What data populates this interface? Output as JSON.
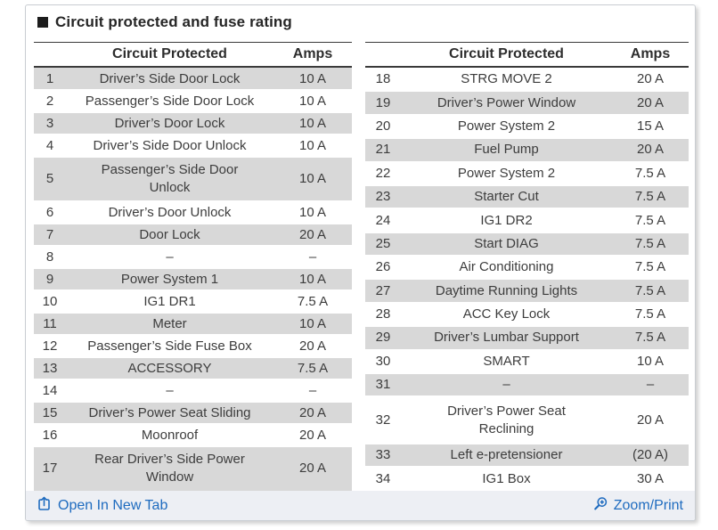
{
  "title": "Circuit protected and fuse rating",
  "tables": [
    {
      "headers": {
        "circuit": "Circuit Protected",
        "amps": "Amps"
      },
      "rows": [
        {
          "num": "1",
          "circuit": "Driver’s Side Door Lock",
          "amps": "10 A",
          "shaded": true
        },
        {
          "num": "2",
          "circuit": "Passenger’s Side Door Lock",
          "amps": "10 A",
          "shaded": false
        },
        {
          "num": "3",
          "circuit": "Driver’s Door Lock",
          "amps": "10 A",
          "shaded": true
        },
        {
          "num": "4",
          "circuit": "Driver’s Side Door Unlock",
          "amps": "10 A",
          "shaded": false
        },
        {
          "num": "5",
          "circuit": "Passenger’s Side Door\nUnlock",
          "amps": "10 A",
          "shaded": true
        },
        {
          "num": "6",
          "circuit": "Driver’s Door Unlock",
          "amps": "10 A",
          "shaded": false
        },
        {
          "num": "7",
          "circuit": "Door Lock",
          "amps": "20 A",
          "shaded": true
        },
        {
          "num": "8",
          "circuit": "–",
          "amps": "–",
          "shaded": false
        },
        {
          "num": "9",
          "circuit": "Power System 1",
          "amps": "10 A",
          "shaded": true
        },
        {
          "num": "10",
          "circuit": "IG1 DR1",
          "amps": "7.5 A",
          "shaded": false
        },
        {
          "num": "11",
          "circuit": "Meter",
          "amps": "10 A",
          "shaded": true
        },
        {
          "num": "12",
          "circuit": "Passenger’s Side Fuse Box",
          "amps": "20 A",
          "shaded": false
        },
        {
          "num": "13",
          "circuit": "ACCESSORY",
          "amps": "7.5 A",
          "shaded": true
        },
        {
          "num": "14",
          "circuit": "–",
          "amps": "–",
          "shaded": false
        },
        {
          "num": "15",
          "circuit": "Driver’s Power Seat Sliding",
          "amps": "20 A",
          "shaded": true
        },
        {
          "num": "16",
          "circuit": "Moonroof",
          "amps": "20 A",
          "shaded": false
        },
        {
          "num": "17",
          "circuit": "Rear Driver’s Side Power\nWindow",
          "amps": "20 A",
          "shaded": true
        }
      ]
    },
    {
      "headers": {
        "circuit": "Circuit Protected",
        "amps": "Amps"
      },
      "rows": [
        {
          "num": "18",
          "circuit": "STRG MOVE 2",
          "amps": "20 A",
          "shaded": false
        },
        {
          "num": "19",
          "circuit": "Driver’s Power Window",
          "amps": "20 A",
          "shaded": true
        },
        {
          "num": "20",
          "circuit": "Power System 2",
          "amps": "15 A",
          "shaded": false
        },
        {
          "num": "21",
          "circuit": "Fuel Pump",
          "amps": "20 A",
          "shaded": true
        },
        {
          "num": "22",
          "circuit": "Power System 2",
          "amps": "7.5 A",
          "shaded": false
        },
        {
          "num": "23",
          "circuit": "Starter Cut",
          "amps": "7.5 A",
          "shaded": true
        },
        {
          "num": "24",
          "circuit": "IG1 DR2",
          "amps": "7.5 A",
          "shaded": false
        },
        {
          "num": "25",
          "circuit": "Start DIAG",
          "amps": "7.5 A",
          "shaded": true
        },
        {
          "num": "26",
          "circuit": "Air Conditioning",
          "amps": "7.5 A",
          "shaded": false
        },
        {
          "num": "27",
          "circuit": "Daytime Running Lights",
          "amps": "7.5 A",
          "shaded": true
        },
        {
          "num": "28",
          "circuit": "ACC Key Lock",
          "amps": "7.5 A",
          "shaded": false
        },
        {
          "num": "29",
          "circuit": "Driver’s Lumbar Support",
          "amps": "7.5 A",
          "shaded": true
        },
        {
          "num": "30",
          "circuit": "SMART",
          "amps": "10 A",
          "shaded": false
        },
        {
          "num": "31",
          "circuit": "–",
          "amps": "–",
          "shaded": true
        },
        {
          "num": "32",
          "circuit": "Driver’s Power Seat\nReclining",
          "amps": "20 A",
          "shaded": false
        },
        {
          "num": "33",
          "circuit": "Left e-pretensioner",
          "amps": "(20 A)",
          "shaded": true
        },
        {
          "num": "34",
          "circuit": "IG1 Box",
          "amps": "30 A",
          "shaded": false
        }
      ]
    }
  ],
  "footer": {
    "open_in_new_tab": "Open In New Tab",
    "zoom_print": "Zoom/Print"
  },
  "colors": {
    "link_blue": "#1e6bbf",
    "row_shade": "#d8d8d8",
    "footer_bg": "#edeff4",
    "table_line": "#3a3a3a"
  }
}
